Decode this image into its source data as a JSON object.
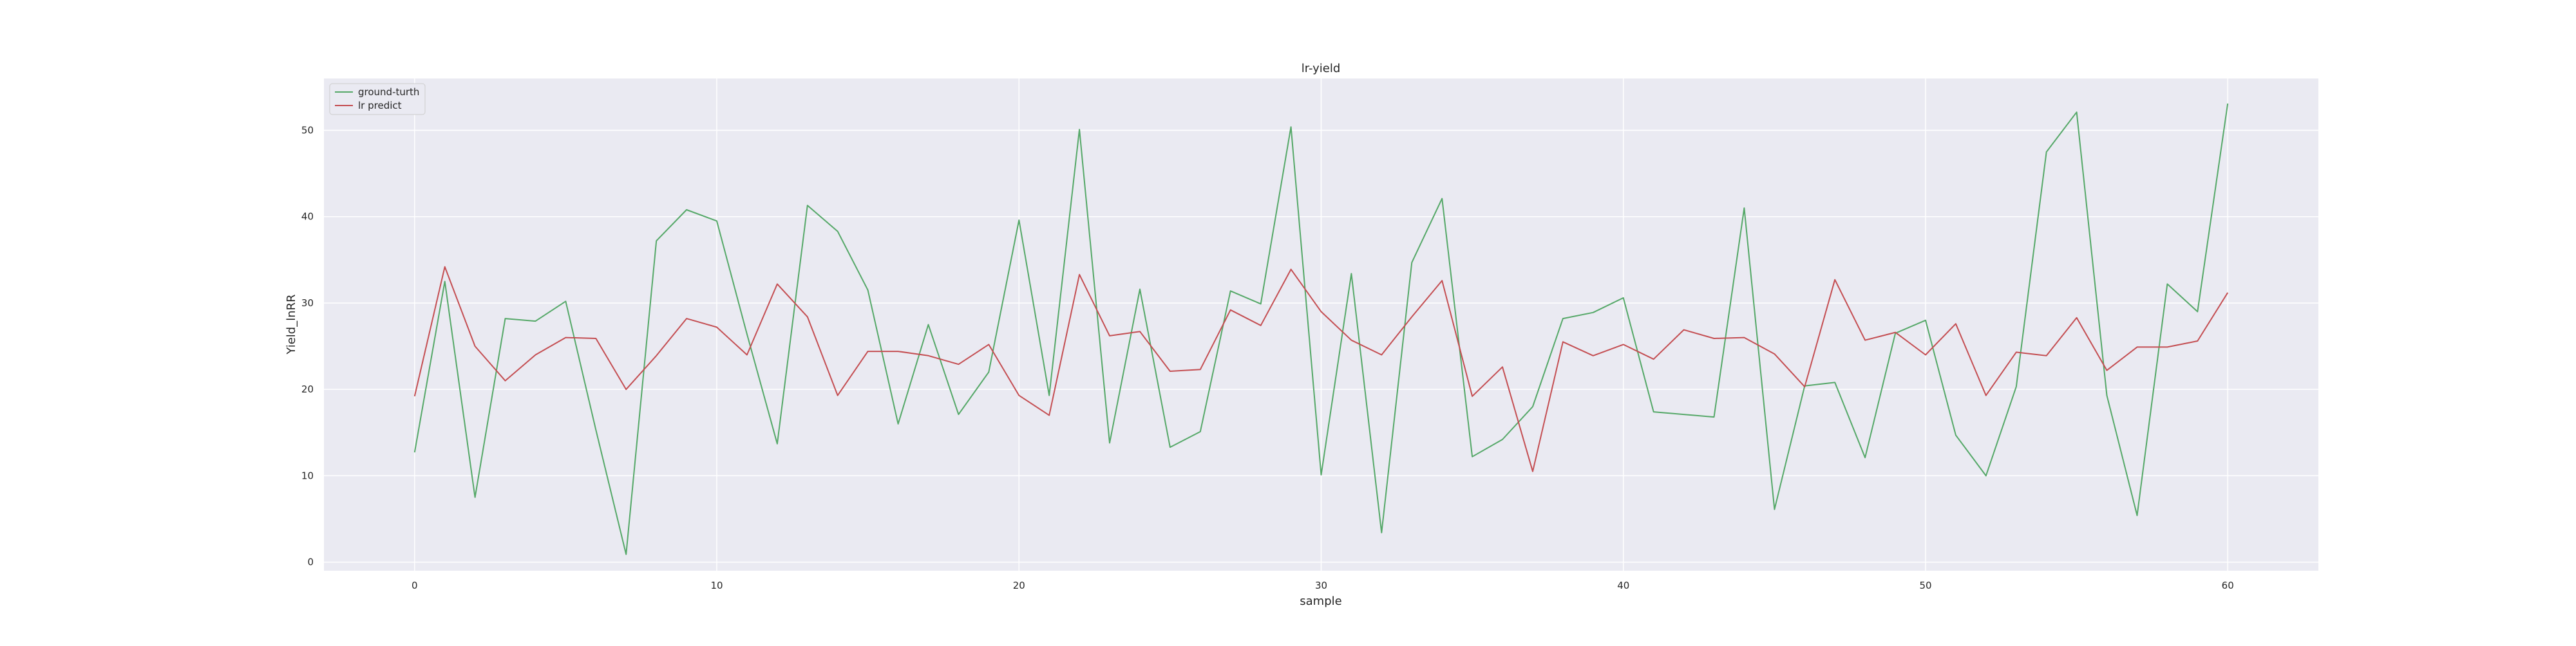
{
  "chart_data": {
    "type": "line",
    "title": "lr-yield",
    "xlabel": "sample",
    "ylabel": "Yield_lnRR",
    "xlim": [
      -3,
      63
    ],
    "ylim": [
      -1,
      56
    ],
    "xticks": [
      0,
      10,
      20,
      30,
      40,
      50,
      60
    ],
    "yticks": [
      0,
      10,
      20,
      30,
      40,
      50
    ],
    "grid": true,
    "legend_position": "top-left",
    "colors": {
      "background": "#eaeaf2",
      "grid": "#ffffff",
      "ground_truth": "#55a868",
      "lr_predict": "#c44e52"
    },
    "x": [
      0,
      1,
      2,
      3,
      4,
      5,
      6,
      7,
      8,
      9,
      10,
      11,
      12,
      13,
      14,
      15,
      16,
      17,
      18,
      19,
      20,
      21,
      22,
      23,
      24,
      25,
      26,
      27,
      28,
      29,
      30,
      31,
      32,
      33,
      34,
      35,
      36,
      37,
      38,
      39,
      40,
      41,
      42,
      43,
      44,
      45,
      46,
      47,
      48,
      49,
      50,
      51,
      52,
      53,
      54,
      55,
      56,
      57,
      58,
      59,
      60
    ],
    "series": [
      {
        "name": "ground-turth",
        "color": "#55a868",
        "values": [
          12.7,
          32.5,
          7.5,
          28.2,
          27.9,
          30.2,
          15.3,
          0.9,
          37.2,
          40.8,
          39.5,
          26.4,
          13.7,
          41.3,
          38.3,
          31.5,
          16.0,
          27.5,
          17.1,
          22.0,
          39.6,
          19.3,
          50.1,
          13.8,
          31.6,
          13.3,
          15.1,
          31.4,
          29.9,
          50.4,
          10.1,
          33.4,
          3.4,
          34.7,
          42.1,
          12.2,
          14.2,
          18.0,
          28.2,
          28.9,
          30.6,
          17.4,
          17.1,
          16.8,
          41.0,
          6.1,
          20.4,
          20.8,
          12.1,
          26.5,
          28.0,
          14.7,
          10.0,
          20.3,
          47.5,
          52.1,
          19.3,
          5.4,
          32.2,
          29.0,
          53.1
        ]
      },
      {
        "name": "lr predict",
        "color": "#c44e52",
        "values": [
          19.2,
          34.2,
          25.0,
          21.0,
          24.0,
          26.0,
          25.9,
          20.0,
          23.9,
          28.2,
          27.2,
          24.0,
          32.2,
          28.4,
          19.3,
          24.4,
          24.4,
          23.9,
          22.9,
          25.2,
          19.3,
          17.0,
          33.3,
          26.2,
          26.7,
          22.1,
          22.3,
          29.2,
          27.4,
          33.9,
          29.0,
          25.7,
          24.0,
          28.4,
          32.6,
          19.2,
          22.6,
          10.5,
          25.5,
          23.9,
          25.2,
          23.5,
          26.9,
          25.9,
          26.0,
          24.1,
          20.3,
          32.7,
          25.7,
          26.6,
          24.0,
          27.6,
          19.3,
          24.3,
          23.9,
          28.3,
          22.2,
          24.9,
          24.9,
          25.6,
          31.2
        ]
      }
    ]
  }
}
